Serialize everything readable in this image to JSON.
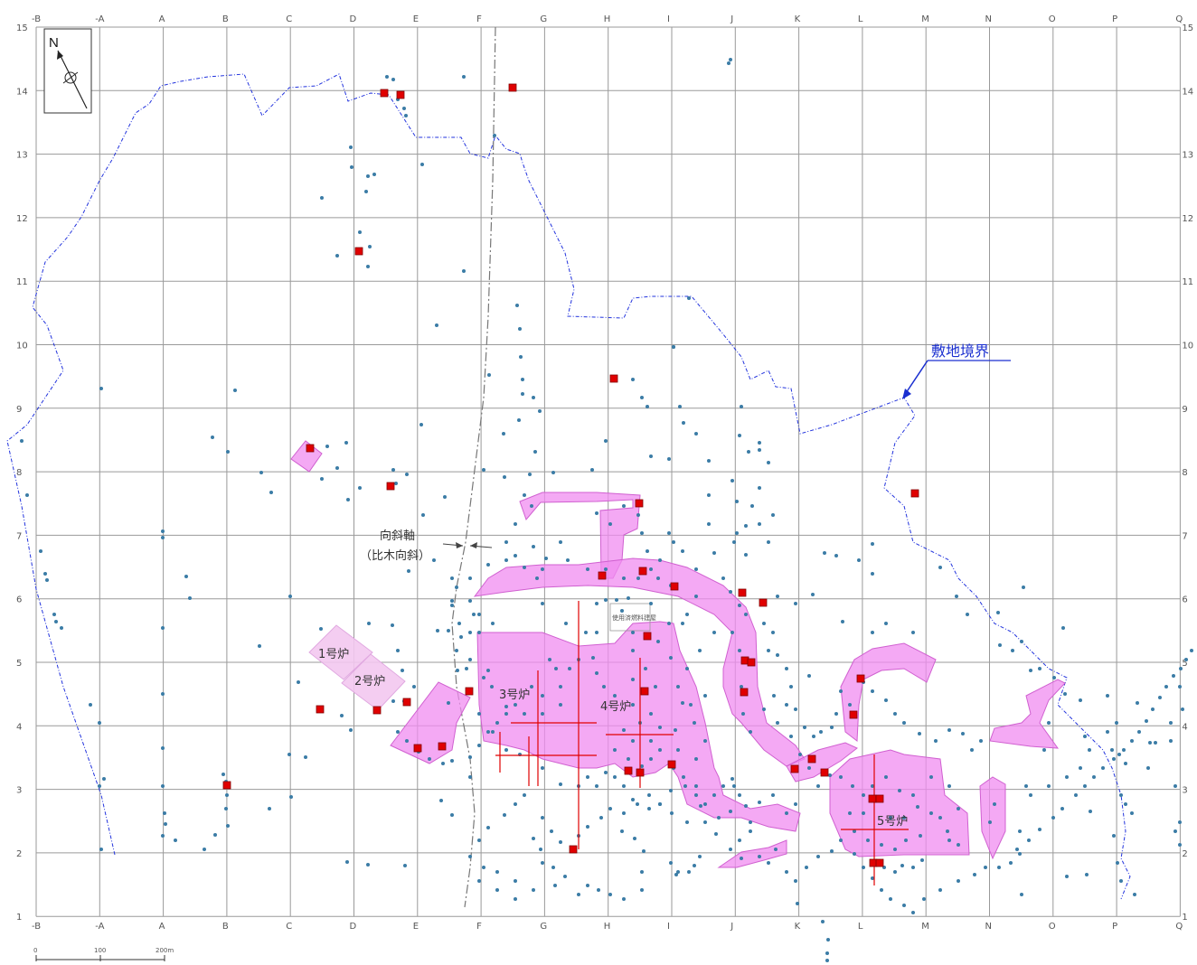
{
  "grid": {
    "columns": [
      "-B",
      "-A",
      "A",
      "B",
      "C",
      "D",
      "E",
      "F",
      "G",
      "H",
      "I",
      "J",
      "K",
      "L",
      "M",
      "N",
      "O",
      "P",
      "Q"
    ],
    "rows": [
      "15",
      "14",
      "13",
      "12",
      "11",
      "10",
      "9",
      "8",
      "7",
      "6",
      "5",
      "4",
      "3",
      "2",
      "1"
    ]
  },
  "compass": {
    "north_label": "N"
  },
  "labels": {
    "site_boundary": "敷地境界",
    "syncline_line1": "向斜軸",
    "syncline_line2": "（比木向斜）",
    "unit1": "1号炉",
    "unit2": "2号炉",
    "unit3": "3号炉",
    "unit4": "4号炉",
    "unit5": "5号炉",
    "building": "使用済燃料建屋"
  },
  "scale_bar": {
    "ticks": [
      "0",
      "100",
      "200m"
    ]
  },
  "colors": {
    "boundary": "#2233dd",
    "zone": "#f08cf0",
    "marker": "#e00000",
    "borehole": "#3b7ca6"
  }
}
